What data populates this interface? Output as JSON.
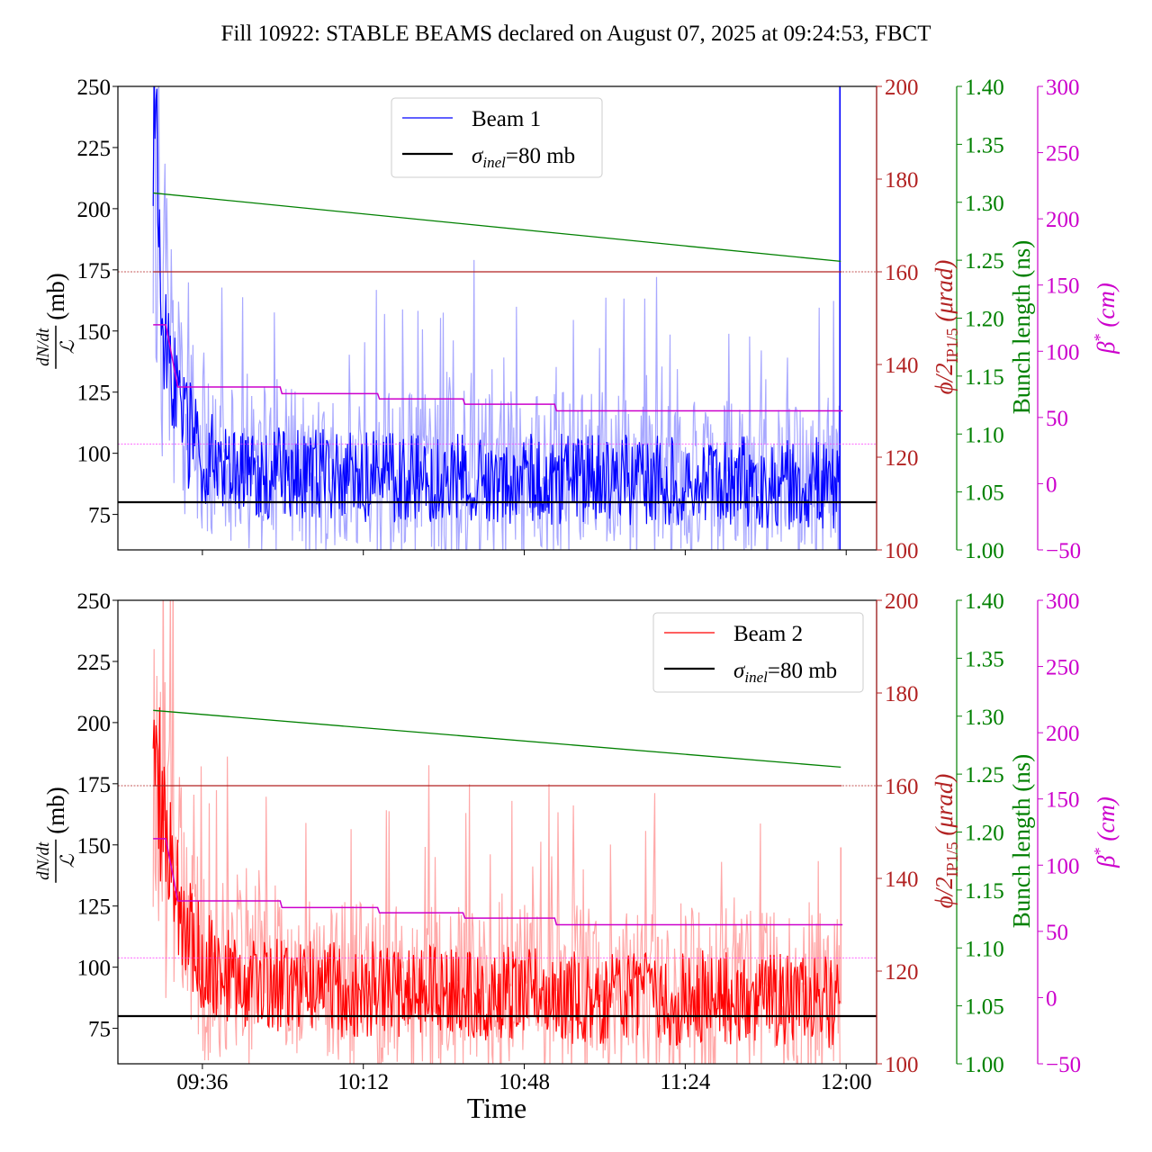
{
  "chart_data": {
    "type": "line",
    "title": "Fill 10922: STABLE BEAMS declared on August 07, 2025 at 09:24:53, FBCT",
    "xlabel": "Time",
    "x_ticks": [
      "09:36",
      "10:12",
      "10:48",
      "11:24",
      "12:00"
    ],
    "x_tick_minutes": [
      576,
      612,
      648,
      684,
      720
    ],
    "xlim_minutes": [
      557.1,
      726.8
    ],
    "left_axis": {
      "label_numerator": "dN/dt",
      "label_denominator": "ℒ",
      "label_unit": "(mb)",
      "ylim": [
        60.5,
        250
      ],
      "ticks": [
        75,
        100,
        125,
        150,
        175,
        200,
        225,
        250
      ]
    },
    "right_axes": [
      {
        "name": "crossing-angle",
        "label_main": "ϕ/2",
        "label_sub": "IP1/5",
        "label_unit": "(μrad)",
        "ylim": [
          100,
          200
        ],
        "ticks": [
          100,
          120,
          140,
          160,
          180,
          200
        ],
        "color": "#b22222"
      },
      {
        "name": "bunch-length",
        "label": "Bunch length (ns)",
        "ylim": [
          1.0,
          1.4
        ],
        "ticks": [
          "1.00",
          "1.05",
          "1.10",
          "1.15",
          "1.20",
          "1.25",
          "1.30",
          "1.35",
          "1.40"
        ],
        "color": "#008000"
      },
      {
        "name": "beta-star",
        "label_main": "β",
        "label_sup": "*",
        "label_unit": "(cm)",
        "ylim": [
          -50,
          300
        ],
        "ticks": [
          "−50",
          "0",
          "50",
          "100",
          "150",
          "200",
          "250",
          "300"
        ],
        "tick_values": [
          -50,
          0,
          50,
          100,
          150,
          200,
          250,
          300
        ],
        "color": "#cc00cc"
      }
    ],
    "reference_line": {
      "label_sigma": "σ",
      "label_sub": "inel",
      "label_rest": "=80 mb",
      "value": 80,
      "color": "#000000"
    },
    "crossing_angle_reference": 160,
    "beta_star_target": 30,
    "panels": [
      {
        "name": "beam-1",
        "legend_label": "Beam 1",
        "color": "#0000ff",
        "band_color": "#9999ff",
        "legend_position": "top-center",
        "samples_minutes": [
          565,
          566,
          567,
          568,
          569,
          570,
          572,
          574,
          576,
          578,
          581,
          584,
          587,
          590,
          594,
          598,
          602,
          606,
          610,
          614,
          618,
          622,
          626,
          630,
          634,
          638,
          642,
          646,
          650,
          654,
          658,
          662,
          666,
          670,
          674,
          678,
          682,
          686,
          690,
          694,
          698,
          702,
          706,
          710,
          714,
          718
        ],
        "beam_values": [
          250,
          198,
          170,
          150,
          135,
          125,
          112,
          104,
          100,
          97,
          95,
          94,
          93,
          92,
          92,
          91,
          92,
          91,
          90,
          91,
          90,
          91,
          90,
          90,
          91,
          90,
          89,
          90,
          90,
          89,
          90,
          89,
          90,
          89,
          88,
          89,
          89,
          88,
          88,
          89,
          88,
          88,
          87,
          88,
          88,
          87
        ],
        "band_halfwidth": [
          60,
          50,
          45,
          40,
          36,
          32,
          28,
          26,
          24,
          23,
          22,
          22,
          22,
          22,
          22,
          22,
          22,
          22,
          22,
          22,
          22,
          22,
          22,
          22,
          22,
          22,
          22,
          22,
          22,
          22,
          22,
          22,
          22,
          22,
          22,
          22,
          22,
          22,
          22,
          22,
          22,
          22,
          22,
          22,
          22,
          22
        ],
        "end_spike_minute": 718.6,
        "bunch_length_ns": {
          "start_minute": 565,
          "start": 1.308,
          "end_minute": 718.8,
          "end": 1.249
        },
        "beta_star_cm": [
          [
            565,
            120
          ],
          [
            567.8,
            120
          ],
          [
            570.5,
            73
          ],
          [
            593.4,
            73
          ],
          [
            593.8,
            68
          ],
          [
            615.2,
            68
          ],
          [
            615.6,
            64
          ],
          [
            634.3,
            64
          ],
          [
            634.7,
            60
          ],
          [
            654.8,
            60
          ],
          [
            655.2,
            55
          ],
          [
            719.2,
            55
          ]
        ]
      },
      {
        "name": "beam-2",
        "legend_label": "Beam 2",
        "color": "#ff0000",
        "band_color": "#ff9999",
        "legend_position": "top-right",
        "samples_minutes": [
          565,
          566,
          567,
          568,
          569,
          570,
          572,
          574,
          576,
          578,
          581,
          584,
          587,
          590,
          594,
          598,
          602,
          606,
          610,
          614,
          618,
          622,
          626,
          630,
          634,
          638,
          642,
          646,
          650,
          654,
          658,
          662,
          666,
          670,
          674,
          678,
          682,
          686,
          690,
          694,
          698,
          702,
          706,
          710,
          714,
          718
        ],
        "beam_values": [
          185,
          170,
          160,
          150,
          140,
          132,
          120,
          110,
          104,
          100,
          97,
          95,
          94,
          93,
          92,
          92,
          91,
          91,
          90,
          91,
          90,
          90,
          90,
          89,
          90,
          89,
          89,
          90,
          89,
          89,
          88,
          89,
          88,
          88,
          88,
          88,
          87,
          88,
          87,
          87,
          88,
          87,
          87,
          86,
          86,
          85
        ],
        "band_halfwidth": [
          55,
          50,
          46,
          42,
          38,
          34,
          30,
          28,
          26,
          25,
          24,
          23,
          23,
          23,
          23,
          23,
          23,
          23,
          23,
          23,
          23,
          23,
          23,
          23,
          23,
          23,
          23,
          23,
          23,
          23,
          23,
          23,
          23,
          23,
          23,
          23,
          23,
          23,
          23,
          23,
          23,
          23,
          23,
          23,
          23,
          23
        ],
        "end_spike_minute": 718.8,
        "bunch_length_ns": {
          "start_minute": 565,
          "start": 1.305,
          "end_minute": 718.8,
          "end": 1.256
        },
        "beta_star_cm": [
          [
            565,
            120
          ],
          [
            567.8,
            120
          ],
          [
            570.5,
            73
          ],
          [
            593.4,
            73
          ],
          [
            593.8,
            68
          ],
          [
            615.2,
            68
          ],
          [
            615.6,
            64
          ],
          [
            634.3,
            64
          ],
          [
            634.7,
            60
          ],
          [
            654.8,
            60
          ],
          [
            655.2,
            55
          ],
          [
            719.2,
            55
          ]
        ]
      }
    ]
  }
}
